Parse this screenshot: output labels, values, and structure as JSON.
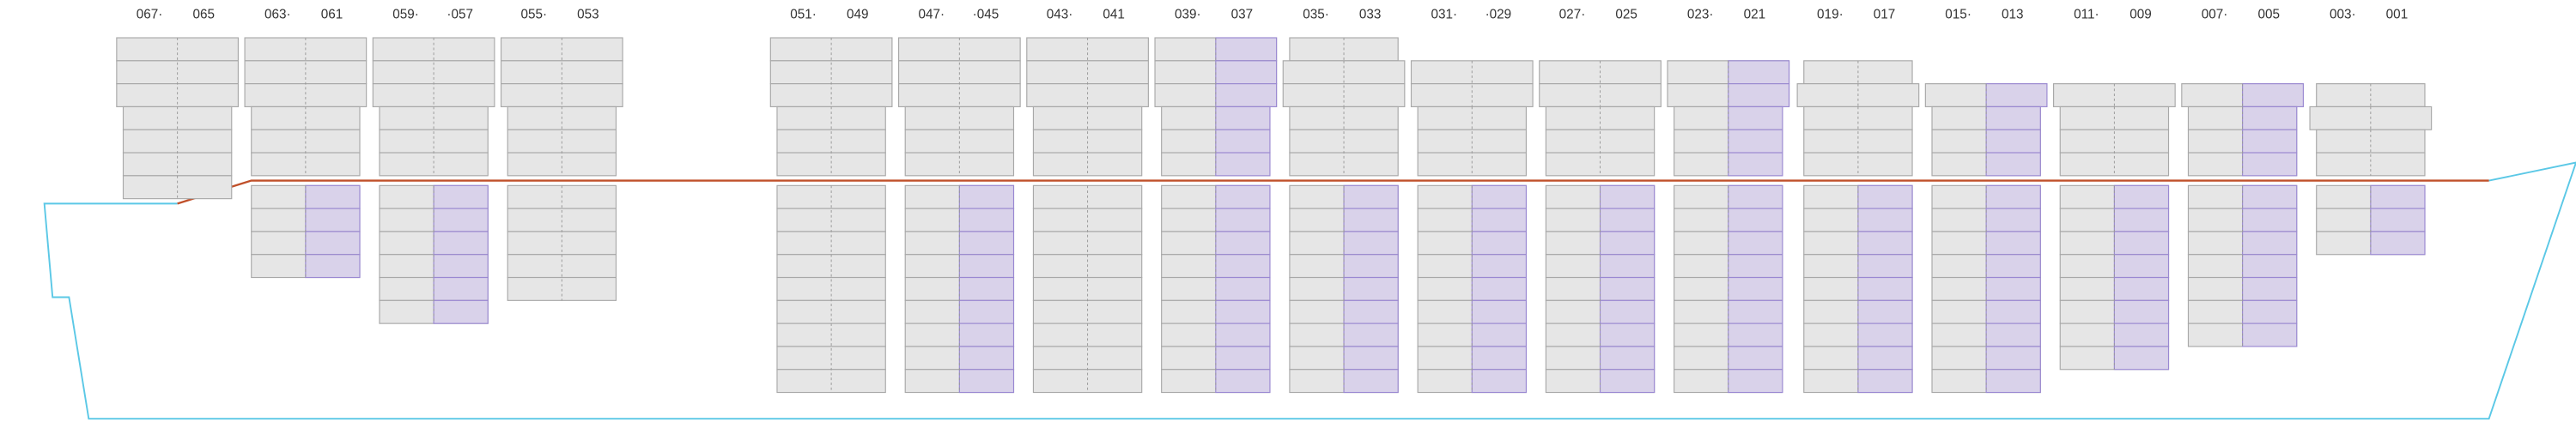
{
  "bays": [
    {
      "left": "067·",
      "right": "065"
    },
    {
      "left": "063·",
      "right": "061"
    },
    {
      "left": "059·",
      "right": "·057"
    },
    {
      "left": "055·",
      "right": "053"
    },
    {
      "left": "051·",
      "right": "049"
    },
    {
      "left": "047·",
      "right": "·045"
    },
    {
      "left": "043·",
      "right": "041"
    },
    {
      "left": "039·",
      "right": "037"
    },
    {
      "left": "035·",
      "right": "033"
    },
    {
      "left": "031·",
      "right": "·029"
    },
    {
      "left": "027·",
      "right": "025"
    },
    {
      "left": "023·",
      "right": "021"
    },
    {
      "left": "019·",
      "right": "017"
    },
    {
      "left": "015·",
      "right": "013"
    },
    {
      "left": "011·",
      "right": "009"
    },
    {
      "left": "007·",
      "right": "005"
    },
    {
      "left": "003·",
      "right": "001"
    }
  ]
}
